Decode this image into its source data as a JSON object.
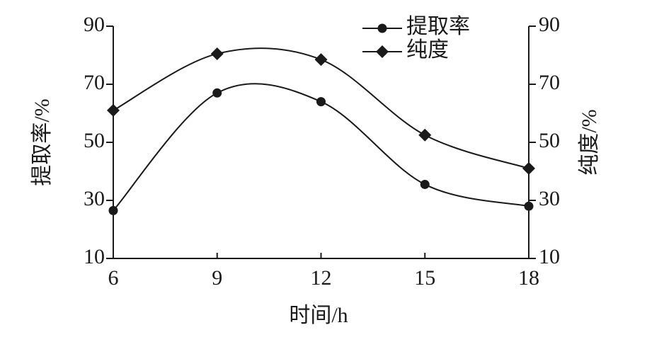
{
  "chart_data": {
    "type": "line",
    "x_label": "时间/h",
    "y_label": "提取率/%",
    "y2_label": "纯度/%",
    "x": [
      6,
      9,
      12,
      15,
      18
    ],
    "xlim": [
      6,
      18
    ],
    "xticks": [
      6,
      9,
      12,
      15,
      18
    ],
    "ylim": [
      10,
      90
    ],
    "yticks": [
      10,
      30,
      50,
      70,
      90
    ],
    "y2lim": [
      10,
      90
    ],
    "y2ticks": [
      10,
      30,
      50,
      70,
      90
    ],
    "grid": false,
    "legend": "top-right",
    "series": [
      {
        "name": "提取率",
        "color": "#1a1a1a",
        "marker": "circle",
        "values": [
          26.5,
          67,
          64,
          35.5,
          28
        ]
      },
      {
        "name": "纯度",
        "color": "#1a1a1a",
        "marker": "diamond",
        "axis": "y2",
        "values": [
          61,
          80.5,
          78.5,
          52.5,
          41
        ]
      }
    ]
  }
}
